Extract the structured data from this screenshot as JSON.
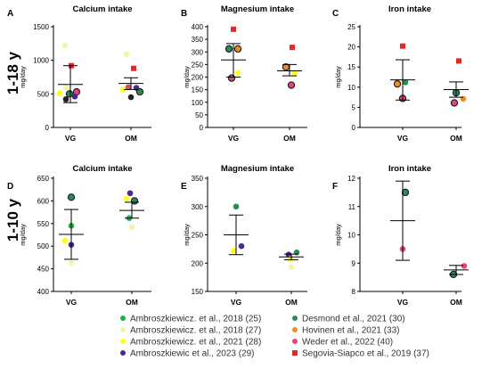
{
  "row_labels": [
    "1-18 y",
    "1-10 y"
  ],
  "legend": [
    {
      "label": "Ambroszkiewicz. et al., 2018 (25)",
      "color": "#1db34a",
      "shape": "circle"
    },
    {
      "label": "Ambroszkiewicz. et al., 2018 (27)",
      "color": "#f2f5b0",
      "shape": "circle"
    },
    {
      "label": "Ambroszkiewicz. et al., 2021 (28)",
      "color": "#ffff1a",
      "shape": "circle"
    },
    {
      "label": "Ambroszkiewic et al., 2023 (29)",
      "color": "#4b2a8c",
      "shape": "circle"
    },
    {
      "label": "Desmond et al., 2021 (30)",
      "color": "#2e8b57",
      "shape": "circle"
    },
    {
      "label": "Hovinen et al., 2021 (33)",
      "color": "#f28c1e",
      "shape": "circle"
    },
    {
      "label": "Weder et al., 2022 (40)",
      "color": "#e0457b",
      "shape": "circle"
    },
    {
      "label": "Segovia-Siapco et al., 2019 (37)",
      "color": "#e8262a",
      "shape": "square"
    }
  ],
  "chart_data": [
    {
      "type": "scatter",
      "letter": "A",
      "title": "Calcium intake",
      "ylabel": "mg/day",
      "categories": [
        "VG",
        "OM"
      ],
      "ylim": [
        0,
        1500
      ],
      "yticks": [
        0,
        500,
        1000,
        1500
      ],
      "summary": [
        {
          "mean": 640,
          "upper": 920,
          "lower": 370
        },
        {
          "mean": 655,
          "upper": 740,
          "lower": 565
        }
      ],
      "points": [
        {
          "cat": 0,
          "dx": -6,
          "y": 1220,
          "color": "#f2f5b0",
          "shape": "circle",
          "ring": false
        },
        {
          "cat": 0,
          "dx": 1,
          "y": 920,
          "color": "#e8262a",
          "shape": "square",
          "ring": false
        },
        {
          "cat": 0,
          "dx": -5,
          "y": 590,
          "color": "#f2f5b0",
          "shape": "circle",
          "ring": false
        },
        {
          "cat": 0,
          "dx": 7,
          "y": 530,
          "color": "#e0457b",
          "shape": "circle",
          "ring": true
        },
        {
          "cat": 0,
          "dx": -12,
          "y": 510,
          "color": "#ffff1a",
          "shape": "circle",
          "ring": false
        },
        {
          "cat": 0,
          "dx": -1,
          "y": 500,
          "color": "#2e8b57",
          "shape": "circle",
          "ring": true
        },
        {
          "cat": 0,
          "dx": 5,
          "y": 460,
          "color": "#4b2a8c",
          "shape": "circle",
          "ring": false
        },
        {
          "cat": 0,
          "dx": -5,
          "y": 420,
          "color": "#222222",
          "shape": "circle",
          "ring": false
        },
        {
          "cat": 1,
          "dx": -5,
          "y": 1090,
          "color": "#f2f5b0",
          "shape": "circle",
          "ring": false
        },
        {
          "cat": 1,
          "dx": 3,
          "y": 880,
          "color": "#e8262a",
          "shape": "square",
          "ring": false
        },
        {
          "cat": 1,
          "dx": -9,
          "y": 570,
          "color": "#ffff1a",
          "shape": "circle",
          "ring": false
        },
        {
          "cat": 1,
          "dx": -3,
          "y": 600,
          "color": "#e0457b",
          "shape": "circle",
          "ring": false
        },
        {
          "cat": 1,
          "dx": 6,
          "y": 590,
          "color": "#4b2a8c",
          "shape": "circle",
          "ring": false
        },
        {
          "cat": 1,
          "dx": 10,
          "y": 530,
          "color": "#2e8b57",
          "shape": "circle",
          "ring": true
        },
        {
          "cat": 1,
          "dx": 0,
          "y": 450,
          "color": "#222222",
          "shape": "circle",
          "ring": false
        }
      ]
    },
    {
      "type": "scatter",
      "letter": "B",
      "title": "Magnesium intake",
      "ylabel": "mg/day",
      "categories": [
        "VG",
        "OM"
      ],
      "ylim": [
        0,
        400
      ],
      "yticks": [
        0,
        50,
        100,
        150,
        200,
        250,
        300,
        350,
        400
      ],
      "summary": [
        {
          "mean": 268,
          "upper": 333,
          "lower": 200
        },
        {
          "mean": 225,
          "upper": 250,
          "lower": 205
        }
      ],
      "points": [
        {
          "cat": 0,
          "dx": 0,
          "y": 390,
          "color": "#e8262a",
          "shape": "square",
          "ring": false
        },
        {
          "cat": 0,
          "dx": -5,
          "y": 312,
          "color": "#2e8b57",
          "shape": "circle",
          "ring": true
        },
        {
          "cat": 0,
          "dx": 5,
          "y": 312,
          "color": "#f28c1e",
          "shape": "circle",
          "ring": true
        },
        {
          "cat": 0,
          "dx": 5,
          "y": 218,
          "color": "#ffff1a",
          "shape": "circle",
          "ring": false
        },
        {
          "cat": 0,
          "dx": -2,
          "y": 196,
          "color": "#e0457b",
          "shape": "circle",
          "ring": true
        },
        {
          "cat": 1,
          "dx": 3,
          "y": 318,
          "color": "#e8262a",
          "shape": "square",
          "ring": false
        },
        {
          "cat": 1,
          "dx": -4,
          "y": 240,
          "color": "#f28c1e",
          "shape": "circle",
          "ring": true
        },
        {
          "cat": 1,
          "dx": 6,
          "y": 215,
          "color": "#ffff1a",
          "shape": "circle",
          "ring": false
        },
        {
          "cat": 1,
          "dx": 2,
          "y": 168,
          "color": "#e0457b",
          "shape": "circle",
          "ring": true
        }
      ]
    },
    {
      "type": "scatter",
      "letter": "C",
      "title": "Iron intake",
      "ylabel": "mg/day",
      "categories": [
        "VG",
        "OM"
      ],
      "ylim": [
        0,
        25
      ],
      "yticks": [
        0,
        5,
        10,
        15,
        20,
        25
      ],
      "summary": [
        {
          "mean": 11.8,
          "upper": 16.8,
          "lower": 6.8
        },
        {
          "mean": 9.4,
          "upper": 11.3,
          "lower": 7.5
        }
      ],
      "points": [
        {
          "cat": 0,
          "dx": 0,
          "y": 20.2,
          "color": "#e8262a",
          "shape": "square",
          "ring": false
        },
        {
          "cat": 0,
          "dx": -6,
          "y": 10.8,
          "color": "#f28c1e",
          "shape": "circle",
          "ring": true
        },
        {
          "cat": 0,
          "dx": 3,
          "y": 11.2,
          "color": "#2e8b57",
          "shape": "circle",
          "ring": false
        },
        {
          "cat": 0,
          "dx": 0,
          "y": 7.2,
          "color": "#e0457b",
          "shape": "circle",
          "ring": true
        },
        {
          "cat": 1,
          "dx": 3,
          "y": 16.5,
          "color": "#e8262a",
          "shape": "square",
          "ring": false
        },
        {
          "cat": 1,
          "dx": 0,
          "y": 8.6,
          "color": "#2e8b57",
          "shape": "circle",
          "ring": true
        },
        {
          "cat": 1,
          "dx": 8,
          "y": 7.1,
          "color": "#f28c1e",
          "shape": "circle",
          "ring": false
        },
        {
          "cat": 1,
          "dx": -2,
          "y": 6.1,
          "color": "#e0457b",
          "shape": "circle",
          "ring": true
        }
      ]
    },
    {
      "type": "scatter",
      "letter": "D",
      "title": "Calcium intake",
      "ylabel": "mg/day",
      "categories": [
        "VG",
        "OM"
      ],
      "ylim": [
        400,
        650
      ],
      "yticks": [
        400,
        450,
        500,
        550,
        600,
        650
      ],
      "summary": [
        {
          "mean": 526,
          "upper": 581,
          "lower": 471
        },
        {
          "mean": 579,
          "upper": 597,
          "lower": 562
        }
      ],
      "points": [
        {
          "cat": 0,
          "dx": 0,
          "y": 608,
          "color": "#2e8b57",
          "shape": "circle",
          "ring": true
        },
        {
          "cat": 0,
          "dx": 0,
          "y": 545,
          "color": "#1db34a",
          "shape": "circle",
          "ring": false
        },
        {
          "cat": 0,
          "dx": -7,
          "y": 512,
          "color": "#ffff1a",
          "shape": "circle",
          "ring": false
        },
        {
          "cat": 0,
          "dx": 0,
          "y": 503,
          "color": "#4b2a8c",
          "shape": "circle",
          "ring": false
        },
        {
          "cat": 0,
          "dx": 0,
          "y": 463,
          "color": "#f2f5b0",
          "shape": "circle",
          "ring": false
        },
        {
          "cat": 1,
          "dx": -2,
          "y": 617,
          "color": "#4b2a8c",
          "shape": "circle",
          "ring": false
        },
        {
          "cat": 1,
          "dx": -6,
          "y": 605,
          "color": "#ffff1a",
          "shape": "circle",
          "ring": false
        },
        {
          "cat": 1,
          "dx": 3,
          "y": 600,
          "color": "#2e8b57",
          "shape": "circle",
          "ring": true
        },
        {
          "cat": 1,
          "dx": -3,
          "y": 562,
          "color": "#1db34a",
          "shape": "circle",
          "ring": false
        },
        {
          "cat": 1,
          "dx": 0,
          "y": 542,
          "color": "#f2f5b0",
          "shape": "circle",
          "ring": false
        }
      ]
    },
    {
      "type": "scatter",
      "letter": "E",
      "title": "Magnesium intake",
      "ylabel": "mg/day",
      "categories": [
        "VG",
        "OM"
      ],
      "ylim": [
        150,
        350
      ],
      "yticks": [
        150,
        200,
        250,
        300,
        350
      ],
      "summary": [
        {
          "mean": 250,
          "upper": 285,
          "lower": 215
        },
        {
          "mean": 211,
          "upper": 216,
          "lower": 206
        }
      ],
      "points": [
        {
          "cat": 0,
          "dx": 0,
          "y": 300,
          "color": "#2e8b57",
          "shape": "circle",
          "ring": false
        },
        {
          "cat": 0,
          "dx": 6,
          "y": 230,
          "color": "#4b2a8c",
          "shape": "circle",
          "ring": false
        },
        {
          "cat": 0,
          "dx": -3,
          "y": 222,
          "color": "#ffff1a",
          "shape": "circle",
          "ring": false
        },
        {
          "cat": 1,
          "dx": 6,
          "y": 219,
          "color": "#2e8b57",
          "shape": "circle",
          "ring": false
        },
        {
          "cat": 1,
          "dx": -3,
          "y": 215,
          "color": "#4b2a8c",
          "shape": "circle",
          "ring": false
        },
        {
          "cat": 1,
          "dx": -1,
          "y": 208,
          "color": "#ffff1a",
          "shape": "circle",
          "ring": false
        },
        {
          "cat": 1,
          "dx": 0,
          "y": 193,
          "color": "#f2f5b0",
          "shape": "circle",
          "ring": false
        }
      ]
    },
    {
      "type": "scatter",
      "letter": "F",
      "title": "Iron intake",
      "ylabel": "mg/day",
      "categories": [
        "VG",
        "OM"
      ],
      "ylim": [
        8,
        12
      ],
      "yticks": [
        8,
        9,
        10,
        11,
        12
      ],
      "summary": [
        {
          "mean": 10.5,
          "upper": 11.9,
          "lower": 9.1
        },
        {
          "mean": 8.76,
          "upper": 8.92,
          "lower": 8.6
        }
      ],
      "points": [
        {
          "cat": 0,
          "dx": 3,
          "y": 11.5,
          "color": "#2e8b57",
          "shape": "circle",
          "ring": true
        },
        {
          "cat": 0,
          "dx": 0,
          "y": 9.5,
          "color": "#e0457b",
          "shape": "circle",
          "ring": false
        },
        {
          "cat": 1,
          "dx": 9,
          "y": 8.9,
          "color": "#e0457b",
          "shape": "circle",
          "ring": false
        },
        {
          "cat": 1,
          "dx": -3,
          "y": 8.6,
          "color": "#2e8b57",
          "shape": "circle",
          "ring": true
        }
      ]
    }
  ]
}
